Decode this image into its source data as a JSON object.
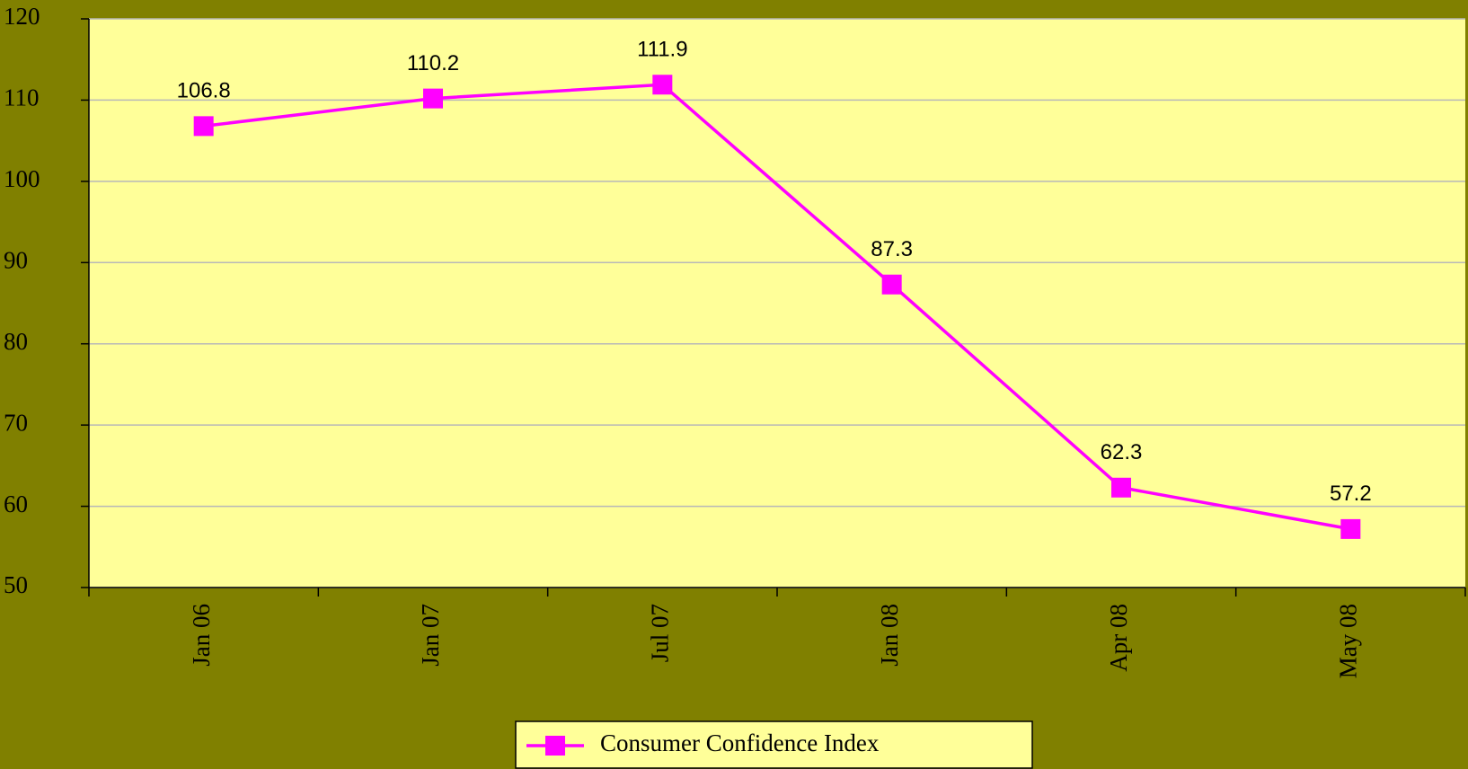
{
  "chart_data": {
    "type": "line",
    "categories": [
      "Jan 06",
      "Jan 07",
      "Jul 07",
      "Jan 08",
      "Apr 08",
      "May 08"
    ],
    "series": [
      {
        "name": "Consumer Confidence Index",
        "color": "#ff00ff",
        "values": [
          106.8,
          110.2,
          111.9,
          87.3,
          62.3,
          57.2
        ]
      }
    ],
    "ylim": [
      50,
      120
    ],
    "yticks": [
      50,
      60,
      70,
      80,
      90,
      100,
      110,
      120
    ],
    "grid": true,
    "legend": "bottom",
    "data_labels": true,
    "plot_background": "#ffff99",
    "background": "#808000"
  }
}
